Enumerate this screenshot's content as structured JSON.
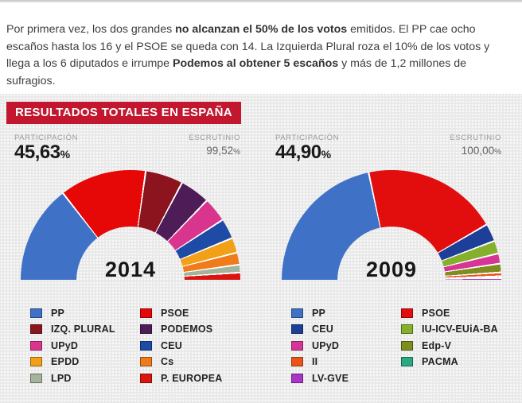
{
  "intro": {
    "segments": [
      {
        "text": "Por primera vez, los dos grandes ",
        "bold": false
      },
      {
        "text": "no alcanzan el 50% de los votos",
        "bold": true
      },
      {
        "text": " emitidos. El PP cae ocho escaños hasta los 16 y el PSOE se queda con 14. La Izquierda Plural roza el 10% de los votos y llega a los 6 diputados e irrumpe ",
        "bold": false
      },
      {
        "text": "Podemos al obtener 5 escaños",
        "bold": true
      },
      {
        "text": " y más de 1,2 millones de sufragios.",
        "bold": false
      }
    ]
  },
  "panel": {
    "title": "RESULTADOS TOTALES EN ESPAÑA",
    "title_bg": "#c2172e"
  },
  "chart_data": [
    {
      "type": "pie",
      "variant": "half-donut",
      "title": "2014",
      "participation": {
        "label": "PARTICIPACIÓN",
        "value": "45,63",
        "suffix": "%"
      },
      "scrutiny": {
        "label": "ESCRUTINIO",
        "value": "99,52",
        "suffix": "%"
      },
      "legend_position": "bottom",
      "slices": [
        {
          "label": "PP",
          "value": 26.1,
          "color": "#3f72c6"
        },
        {
          "label": "PSOE",
          "value": 23.0,
          "color": "#e60707"
        },
        {
          "label": "IZQ. PLURAL",
          "value": 10.0,
          "color": "#8c141f"
        },
        {
          "label": "PODEMOS",
          "value": 8.0,
          "color": "#4e1d57"
        },
        {
          "label": "UPyD",
          "value": 6.5,
          "color": "#d9358f"
        },
        {
          "label": "CEU",
          "value": 5.4,
          "color": "#1d4ba6"
        },
        {
          "label": "EPDD",
          "value": 4.0,
          "color": "#f2a017"
        },
        {
          "label": "Cs",
          "value": 3.2,
          "color": "#ef7b1a"
        },
        {
          "label": "LPD",
          "value": 2.1,
          "color": "#a3b39c"
        },
        {
          "label": "P. EUROPEA",
          "value": 1.9,
          "color": "#da1510"
        }
      ]
    },
    {
      "type": "pie",
      "variant": "half-donut",
      "title": "2009",
      "participation": {
        "label": "PARTICIPACIÓN",
        "value": "44,90",
        "suffix": "%"
      },
      "scrutiny": {
        "label": "ESCRUTINIO",
        "value": "100,00",
        "suffix": "%"
      },
      "legend_position": "bottom",
      "slices": [
        {
          "label": "PP",
          "value": 42.1,
          "color": "#3f72c6"
        },
        {
          "label": "PSOE",
          "value": 38.8,
          "color": "#e20d0d"
        },
        {
          "label": "CEU",
          "value": 5.1,
          "color": "#1d3f97"
        },
        {
          "label": "IU-ICV-EUiA-BA",
          "value": 3.7,
          "color": "#84b02c"
        },
        {
          "label": "UPyD",
          "value": 2.9,
          "color": "#d63595"
        },
        {
          "label": "Edp-V",
          "value": 2.5,
          "color": "#7f8c1f"
        },
        {
          "label": "II",
          "value": 1.1,
          "color": "#ea5419"
        },
        {
          "label": "PACMA",
          "value": 0.5,
          "color": "#2aa783"
        },
        {
          "label": "LV-GVE",
          "value": 0.5,
          "color": "#a834c8"
        }
      ]
    }
  ]
}
